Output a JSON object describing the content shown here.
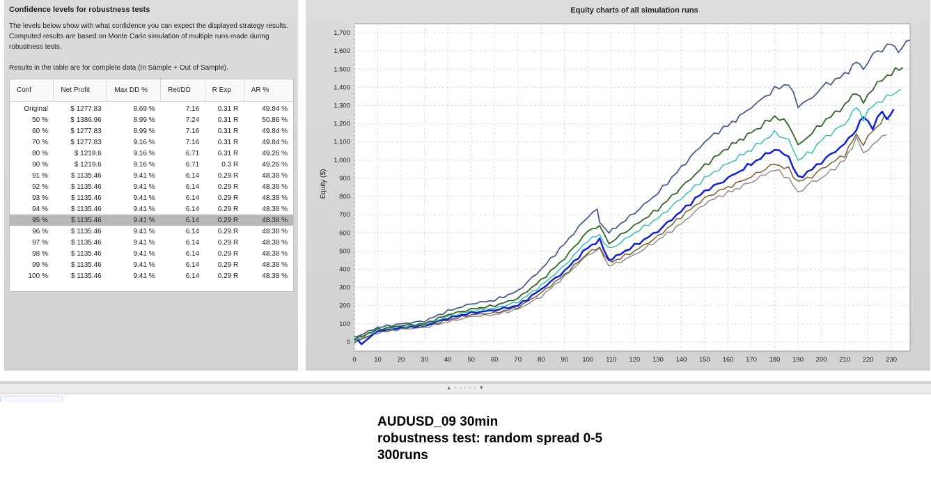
{
  "confidence_panel": {
    "title": "Confidence levels for robustness tests",
    "description": "The levels below show with what confidence you can expect the displayed strategy results. Computed results are based on Monte Carlo simulation of multiple runs made during robustness tests.",
    "note": "Results in the table are for complete data (In Sample + Out of Sample).",
    "columns": [
      "Conf",
      "Net Profit",
      "Max DD %",
      "Ret/DD",
      "R Exp",
      "AR %"
    ],
    "rows": [
      [
        "Original",
        "$ 1277.83",
        "8.69 %",
        "7.16",
        "0.31 R",
        "49.84 %"
      ],
      [
        "50 %",
        "$ 1386.96",
        "8.99 %",
        "7.24",
        "0.31 R",
        "50.86 %"
      ],
      [
        "60 %",
        "$ 1277.83",
        "8.99 %",
        "7.16",
        "0.31 R",
        "49.84 %"
      ],
      [
        "70 %",
        "$ 1277.83",
        "9.16 %",
        "7.16",
        "0.31 R",
        "49.84 %"
      ],
      [
        "80 %",
        "$ 1219.6",
        "9.16 %",
        "6.71",
        "0.31 R",
        "49.26 %"
      ],
      [
        "90 %",
        "$ 1219.6",
        "9.16 %",
        "6.71",
        "0.3 R",
        "49.26 %"
      ],
      [
        "91 %",
        "$ 1135.46",
        "9.41 %",
        "6.14",
        "0.29 R",
        "48.38 %"
      ],
      [
        "92 %",
        "$ 1135.46",
        "9.41 %",
        "6.14",
        "0.29 R",
        "48.38 %"
      ],
      [
        "93 %",
        "$ 1135.46",
        "9.41 %",
        "6.14",
        "0.29 R",
        "48.38 %"
      ],
      [
        "94 %",
        "$ 1135.46",
        "9.41 %",
        "6.14",
        "0.29 R",
        "48.38 %"
      ],
      [
        "95 %",
        "$ 1135.46",
        "9.41 %",
        "6.14",
        "0.29 R",
        "48.38 %"
      ],
      [
        "96 %",
        "$ 1135.46",
        "9.41 %",
        "6.14",
        "0.29 R",
        "48.38 %"
      ],
      [
        "97 %",
        "$ 1135.46",
        "9.41 %",
        "6.14",
        "0.29 R",
        "48.38 %"
      ],
      [
        "98 %",
        "$ 1135.46",
        "9.41 %",
        "6.14",
        "0.29 R",
        "48.38 %"
      ],
      [
        "99 %",
        "$ 1135.46",
        "9.41 %",
        "6.14",
        "0.29 R",
        "48.38 %"
      ],
      [
        "100 %",
        "$ 1135.46",
        "9.41 %",
        "6.14",
        "0.29 R",
        "48.38 %"
      ]
    ],
    "selected_row": 10
  },
  "splitter": {
    "arrows": "▲ - - - - - ▼"
  },
  "annotation": {
    "line1": "AUDUSD_09 30min",
    "line2": "robustness test: random spread 0-5",
    "line3": "300runs"
  },
  "chart_data": {
    "type": "line",
    "title": "Equity charts of all simulation runs",
    "xlabel": "",
    "ylabel": "Equity ($)",
    "xlim": [
      0,
      238
    ],
    "ylim": [
      -50,
      1750
    ],
    "x_ticks": [
      0,
      10,
      20,
      30,
      40,
      50,
      60,
      70,
      80,
      90,
      100,
      110,
      120,
      130,
      140,
      150,
      160,
      170,
      180,
      190,
      200,
      210,
      220,
      230
    ],
    "y_ticks": [
      0,
      100,
      200,
      300,
      400,
      500,
      600,
      700,
      800,
      900,
      1000,
      1100,
      1200,
      1300,
      1400,
      1500,
      1600,
      1700
    ],
    "y_tick_labels": [
      "0",
      "100",
      "200",
      "300",
      "400",
      "500",
      "600",
      "700",
      "800",
      "900",
      "1,000",
      "1,100",
      "1,200",
      "1,300",
      "1,400",
      "1,500",
      "1,600",
      "1,700"
    ],
    "grid": true,
    "legend": false,
    "series": [
      {
        "color": "#8c8c96",
        "width": 1.5,
        "points": [
          [
            0,
            0
          ],
          [
            10,
            50
          ],
          [
            20,
            70
          ],
          [
            30,
            80
          ],
          [
            40,
            110
          ],
          [
            50,
            140
          ],
          [
            60,
            150
          ],
          [
            70,
            180
          ],
          [
            80,
            250
          ],
          [
            90,
            360
          ],
          [
            100,
            480
          ],
          [
            105,
            510
          ],
          [
            109,
            420
          ],
          [
            112,
            430
          ],
          [
            120,
            480
          ],
          [
            130,
            560
          ],
          [
            140,
            650
          ],
          [
            150,
            760
          ],
          [
            156,
            800
          ],
          [
            160,
            820
          ],
          [
            165,
            850
          ],
          [
            170,
            880
          ],
          [
            180,
            950
          ],
          [
            186,
            900
          ],
          [
            190,
            820
          ],
          [
            196,
            880
          ],
          [
            200,
            900
          ],
          [
            210,
            1000
          ],
          [
            215,
            1120
          ],
          [
            218,
            1040
          ],
          [
            222,
            1080
          ],
          [
            226,
            1130
          ],
          [
            228,
            1140
          ]
        ]
      },
      {
        "color": "#7a5c28",
        "width": 1.5,
        "points": [
          [
            0,
            0
          ],
          [
            10,
            55
          ],
          [
            20,
            75
          ],
          [
            30,
            85
          ],
          [
            40,
            120
          ],
          [
            50,
            150
          ],
          [
            60,
            160
          ],
          [
            70,
            190
          ],
          [
            80,
            270
          ],
          [
            90,
            370
          ],
          [
            100,
            490
          ],
          [
            105,
            520
          ],
          [
            109,
            440
          ],
          [
            112,
            450
          ],
          [
            120,
            500
          ],
          [
            130,
            580
          ],
          [
            140,
            690
          ],
          [
            150,
            790
          ],
          [
            156,
            830
          ],
          [
            160,
            850
          ],
          [
            165,
            880
          ],
          [
            170,
            910
          ],
          [
            180,
            980
          ],
          [
            186,
            950
          ],
          [
            190,
            880
          ],
          [
            196,
            910
          ],
          [
            200,
            950
          ],
          [
            210,
            1030
          ],
          [
            215,
            1140
          ],
          [
            218,
            1090
          ],
          [
            222,
            1160
          ],
          [
            227,
            1230
          ],
          [
            229,
            1220
          ]
        ]
      },
      {
        "color": "#0f1fd6",
        "width": 2.5,
        "points": [
          [
            0,
            20
          ],
          [
            3,
            -10
          ],
          [
            10,
            60
          ],
          [
            20,
            80
          ],
          [
            30,
            90
          ],
          [
            40,
            130
          ],
          [
            50,
            160
          ],
          [
            60,
            175
          ],
          [
            70,
            200
          ],
          [
            80,
            290
          ],
          [
            90,
            390
          ],
          [
            100,
            520
          ],
          [
            105,
            560
          ],
          [
            109,
            450
          ],
          [
            112,
            470
          ],
          [
            120,
            530
          ],
          [
            130,
            610
          ],
          [
            140,
            720
          ],
          [
            150,
            830
          ],
          [
            156,
            870
          ],
          [
            160,
            900
          ],
          [
            165,
            940
          ],
          [
            170,
            980
          ],
          [
            180,
            1060
          ],
          [
            186,
            1020
          ],
          [
            190,
            900
          ],
          [
            196,
            950
          ],
          [
            200,
            990
          ],
          [
            210,
            1090
          ],
          [
            215,
            1170
          ],
          [
            218,
            1240
          ],
          [
            222,
            1180
          ],
          [
            226,
            1270
          ],
          [
            228,
            1230
          ],
          [
            231,
            1280
          ]
        ]
      },
      {
        "color": "#39c0b2",
        "width": 1.5,
        "points": [
          [
            0,
            10
          ],
          [
            10,
            65
          ],
          [
            20,
            85
          ],
          [
            30,
            95
          ],
          [
            40,
            140
          ],
          [
            50,
            170
          ],
          [
            60,
            185
          ],
          [
            70,
            220
          ],
          [
            80,
            310
          ],
          [
            90,
            420
          ],
          [
            100,
            560
          ],
          [
            105,
            590
          ],
          [
            109,
            510
          ],
          [
            112,
            530
          ],
          [
            120,
            600
          ],
          [
            130,
            680
          ],
          [
            140,
            790
          ],
          [
            150,
            900
          ],
          [
            156,
            950
          ],
          [
            160,
            980
          ],
          [
            165,
            1020
          ],
          [
            170,
            1060
          ],
          [
            180,
            1150
          ],
          [
            186,
            1110
          ],
          [
            190,
            1000
          ],
          [
            196,
            1050
          ],
          [
            200,
            1110
          ],
          [
            210,
            1200
          ],
          [
            215,
            1290
          ],
          [
            218,
            1230
          ],
          [
            222,
            1300
          ],
          [
            226,
            1330
          ],
          [
            234,
            1390
          ]
        ]
      },
      {
        "color": "#2e6424",
        "width": 1.8,
        "points": [
          [
            0,
            15
          ],
          [
            10,
            70
          ],
          [
            20,
            90
          ],
          [
            30,
            100
          ],
          [
            40,
            150
          ],
          [
            50,
            180
          ],
          [
            60,
            200
          ],
          [
            70,
            240
          ],
          [
            80,
            340
          ],
          [
            90,
            460
          ],
          [
            100,
            610
          ],
          [
            105,
            640
          ],
          [
            109,
            540
          ],
          [
            112,
            570
          ],
          [
            120,
            640
          ],
          [
            130,
            730
          ],
          [
            140,
            850
          ],
          [
            150,
            970
          ],
          [
            156,
            1030
          ],
          [
            160,
            1070
          ],
          [
            165,
            1110
          ],
          [
            170,
            1150
          ],
          [
            180,
            1240
          ],
          [
            186,
            1200
          ],
          [
            190,
            1080
          ],
          [
            196,
            1150
          ],
          [
            200,
            1200
          ],
          [
            210,
            1300
          ],
          [
            215,
            1380
          ],
          [
            218,
            1310
          ],
          [
            222,
            1400
          ],
          [
            226,
            1440
          ],
          [
            230,
            1480
          ],
          [
            235,
            1510
          ]
        ]
      },
      {
        "color": "#465e8e",
        "width": 1.8,
        "points": [
          [
            0,
            25
          ],
          [
            10,
            80
          ],
          [
            20,
            100
          ],
          [
            30,
            115
          ],
          [
            40,
            170
          ],
          [
            50,
            210
          ],
          [
            60,
            230
          ],
          [
            70,
            280
          ],
          [
            80,
            400
          ],
          [
            90,
            540
          ],
          [
            100,
            690
          ],
          [
            104,
            730
          ],
          [
            105,
            660
          ],
          [
            109,
            600
          ],
          [
            112,
            630
          ],
          [
            120,
            710
          ],
          [
            130,
            820
          ],
          [
            140,
            960
          ],
          [
            150,
            1100
          ],
          [
            156,
            1160
          ],
          [
            160,
            1190
          ],
          [
            165,
            1240
          ],
          [
            170,
            1290
          ],
          [
            180,
            1390
          ],
          [
            186,
            1420
          ],
          [
            190,
            1300
          ],
          [
            196,
            1340
          ],
          [
            200,
            1400
          ],
          [
            210,
            1470
          ],
          [
            215,
            1540
          ],
          [
            218,
            1500
          ],
          [
            222,
            1580
          ],
          [
            226,
            1610
          ],
          [
            230,
            1640
          ],
          [
            233,
            1600
          ],
          [
            238,
            1660
          ]
        ]
      }
    ]
  }
}
